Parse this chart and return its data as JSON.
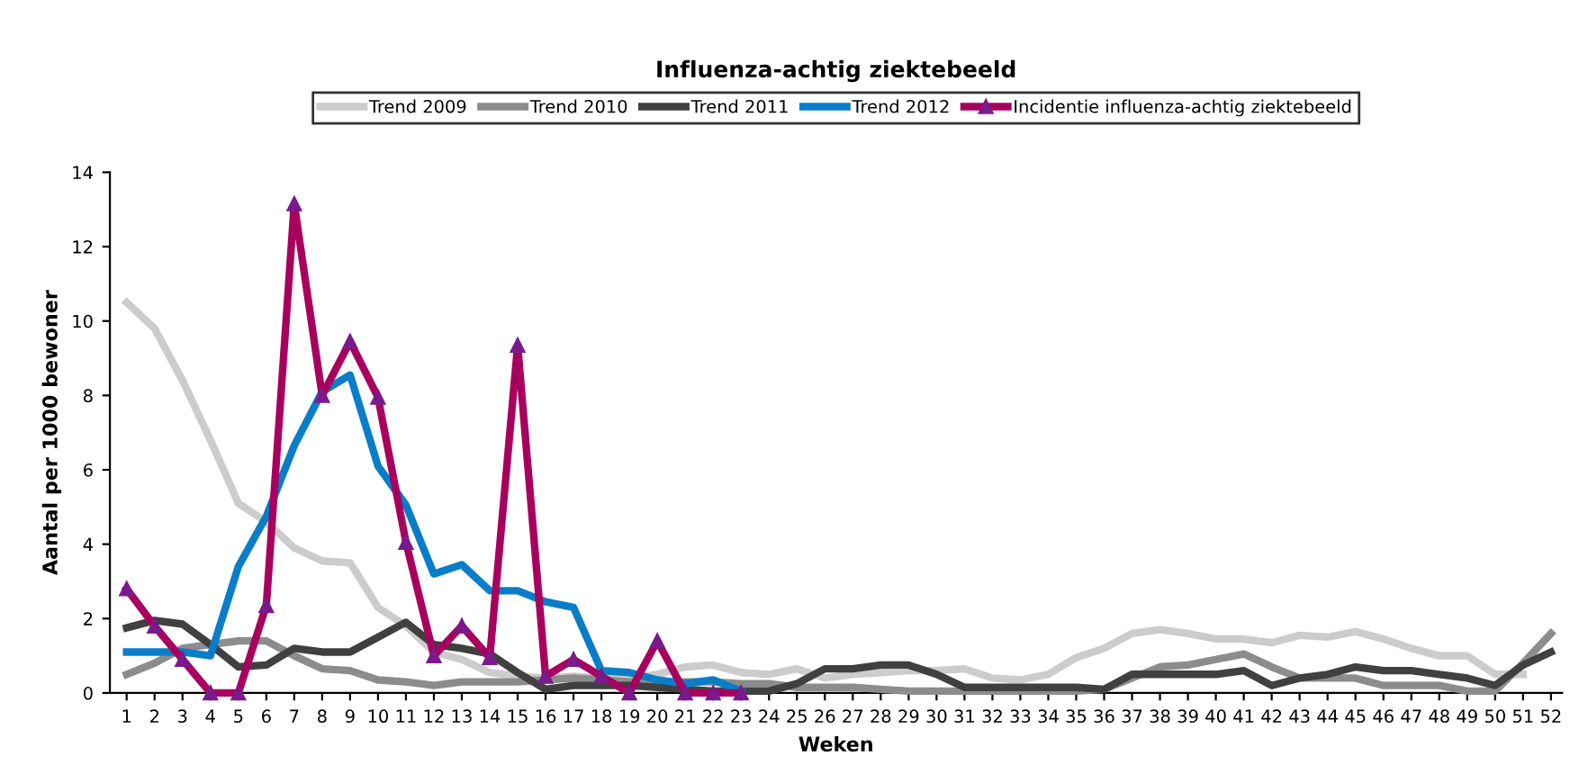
{
  "chart_data": {
    "type": "line",
    "title": "Influenza-achtig ziektebeeld",
    "xlabel": "Weken",
    "ylabel": "Aantal per 1000 bewoner",
    "categories": [
      "1",
      "2",
      "3",
      "4",
      "5",
      "6",
      "7",
      "8",
      "9",
      "10",
      "11",
      "12",
      "13",
      "14",
      "15",
      "16",
      "17",
      "18",
      "19",
      "20",
      "21",
      "22",
      "23",
      "24",
      "25",
      "26",
      "27",
      "28",
      "29",
      "30",
      "31",
      "32",
      "33",
      "34",
      "35",
      "36",
      "37",
      "38",
      "39",
      "40",
      "41",
      "42",
      "43",
      "44",
      "45",
      "46",
      "47",
      "48",
      "49",
      "50",
      "51",
      "52"
    ],
    "ylim": [
      0,
      14
    ],
    "yticks": [
      0,
      2,
      4,
      6,
      8,
      10,
      12,
      14
    ],
    "grid": false,
    "legend": "top",
    "line_style": "solid",
    "series": [
      {
        "name": "Trend 2009",
        "color": "#cccccc",
        "marker": "none",
        "values": [
          10.5,
          9.8,
          8.4,
          6.8,
          5.1,
          4.6,
          3.9,
          3.55,
          3.5,
          2.3,
          1.8,
          1.1,
          0.9,
          0.55,
          0.45,
          0.4,
          0.45,
          0.4,
          0.4,
          0.5,
          0.7,
          0.75,
          0.55,
          0.5,
          0.65,
          0.4,
          0.5,
          0.55,
          0.6,
          0.6,
          0.65,
          0.4,
          0.35,
          0.5,
          0.95,
          1.2,
          1.6,
          1.7,
          1.6,
          1.45,
          1.45,
          1.35,
          1.55,
          1.5,
          1.65,
          1.45,
          1.2,
          1.0,
          1.0,
          0.5,
          0.5,
          null
        ]
      },
      {
        "name": "Trend 2010",
        "color": "#8c8c8c",
        "marker": "none",
        "values": [
          0.5,
          0.8,
          1.2,
          1.3,
          1.4,
          1.4,
          1.0,
          0.65,
          0.6,
          0.35,
          0.3,
          0.2,
          0.3,
          0.3,
          0.3,
          0.35,
          0.4,
          0.35,
          0.3,
          0.3,
          0.3,
          0.3,
          0.25,
          0.25,
          0.15,
          0.15,
          0.15,
          0.1,
          0.05,
          0.05,
          0.05,
          0.05,
          0.05,
          0.05,
          0.05,
          0.1,
          0.4,
          0.7,
          0.75,
          0.9,
          1.05,
          0.7,
          0.4,
          0.4,
          0.4,
          0.2,
          0.2,
          0.2,
          0.05,
          0.05,
          0.8,
          1.6
        ]
      },
      {
        "name": "Trend 2011",
        "color": "#404040",
        "marker": "none",
        "values": [
          1.75,
          1.95,
          1.85,
          1.3,
          0.7,
          0.75,
          1.2,
          1.1,
          1.1,
          1.5,
          1.9,
          1.3,
          1.2,
          1.05,
          0.55,
          0.1,
          0.2,
          0.2,
          0.2,
          0.15,
          0.1,
          0.05,
          0.05,
          0.05,
          0.25,
          0.65,
          0.65,
          0.75,
          0.75,
          0.5,
          0.15,
          0.15,
          0.15,
          0.15,
          0.15,
          0.1,
          0.5,
          0.5,
          0.5,
          0.5,
          0.6,
          0.2,
          0.4,
          0.5,
          0.7,
          0.6,
          0.6,
          0.5,
          0.4,
          0.2,
          0.75,
          1.1
        ]
      },
      {
        "name": "Trend 2012",
        "color": "#0a7dc8",
        "marker": "none",
        "values": [
          1.1,
          1.1,
          1.1,
          1.0,
          3.4,
          4.75,
          6.65,
          8.1,
          8.55,
          6.1,
          5.05,
          3.2,
          3.45,
          2.75,
          2.75,
          2.45,
          2.3,
          0.6,
          0.55,
          0.35,
          0.25,
          0.35,
          0.05,
          null,
          null,
          null,
          null,
          null,
          null,
          null,
          null,
          null,
          null,
          null,
          null,
          null,
          null,
          null,
          null,
          null,
          null,
          null,
          null,
          null,
          null,
          null,
          null,
          null,
          null,
          null,
          null,
          null
        ]
      },
      {
        "name": "Incidentie influenza-achtig ziektebeeld",
        "color": "#a8005e",
        "marker": "triangle",
        "values": [
          2.8,
          1.8,
          0.9,
          0,
          0,
          2.35,
          13.15,
          8.0,
          9.45,
          7.95,
          4.05,
          1.0,
          1.8,
          0.95,
          9.35,
          0.45,
          0.9,
          0.45,
          0,
          1.4,
          0,
          0,
          0,
          null,
          null,
          null,
          null,
          null,
          null,
          null,
          null,
          null,
          null,
          null,
          null,
          null,
          null,
          null,
          null,
          null,
          null,
          null,
          null,
          null,
          null,
          null,
          null,
          null,
          null,
          null,
          null,
          null
        ]
      }
    ]
  }
}
